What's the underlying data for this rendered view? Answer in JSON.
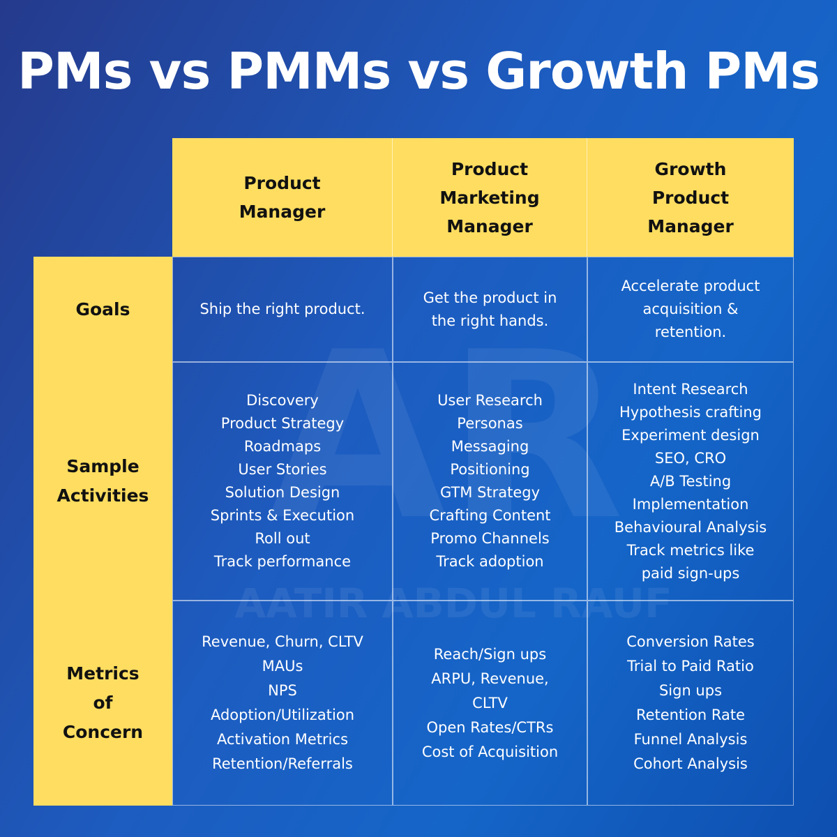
{
  "title": "PMs vs PMMs vs Growth PMs",
  "watermark": {
    "monogram": "AR",
    "name": "AATIR ABDUL RAUF"
  },
  "colors": {
    "background": "#1d5cc0",
    "header_fill": "#fedd60",
    "text_on_yellow": "#111111",
    "text_on_blue": "#ffffff"
  },
  "columns": [
    {
      "lines": [
        "Product",
        "Manager"
      ]
    },
    {
      "lines": [
        "Product",
        "Marketing",
        "Manager"
      ]
    },
    {
      "lines": [
        "Growth",
        "Product",
        "Manager"
      ]
    }
  ],
  "rows": [
    {
      "label_lines": [
        "Goals"
      ],
      "cells": [
        [
          "Ship the right product."
        ],
        [
          "Get the product in",
          "the right hands."
        ],
        [
          "Accelerate product",
          "acquisition &",
          "retention."
        ]
      ]
    },
    {
      "label_lines": [
        "Sample",
        "Activities"
      ],
      "cells": [
        [
          "Discovery",
          "Product Strategy",
          "Roadmaps",
          "User Stories",
          "Solution Design",
          "Sprints & Execution",
          "Roll out",
          "Track performance"
        ],
        [
          "User Research",
          "Personas",
          "Messaging",
          "Positioning",
          "GTM Strategy",
          "Crafting Content",
          "Promo Channels",
          "Track adoption"
        ],
        [
          "Intent Research",
          "Hypothesis crafting",
          "Experiment design",
          "SEO, CRO",
          "A/B Testing",
          "Implementation",
          "Behavioural Analysis",
          "Track metrics like",
          "paid sign-ups"
        ]
      ]
    },
    {
      "label_lines": [
        "Metrics",
        "of",
        "Concern"
      ],
      "cells": [
        [
          "Revenue, Churn, CLTV",
          "MAUs",
          "NPS",
          "Adoption/Utilization",
          "Activation Metrics",
          "Retention/Referrals"
        ],
        [
          "Reach/Sign ups",
          "ARPU, Revenue,",
          "CLTV",
          "Open Rates/CTRs",
          "Cost of Acquisition"
        ],
        [
          "Conversion Rates",
          "Trial to Paid Ratio",
          "Sign ups",
          "Retention Rate",
          "Funnel Analysis",
          "Cohort Analysis"
        ]
      ]
    }
  ]
}
